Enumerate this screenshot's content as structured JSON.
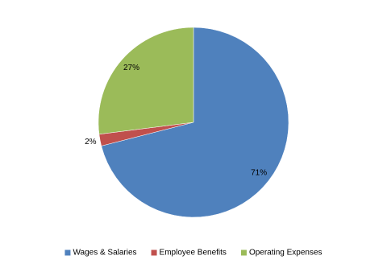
{
  "chart_data": {
    "type": "pie",
    "categories": [
      "Wages & Salaries",
      "Employee Benefits",
      "Operating Expenses"
    ],
    "values": [
      71,
      2,
      27
    ],
    "value_labels": [
      "71%",
      "2%",
      "27%"
    ],
    "colors": [
      "#4f81bd",
      "#c0504d",
      "#9bbb59"
    ],
    "legend": "bottom"
  }
}
